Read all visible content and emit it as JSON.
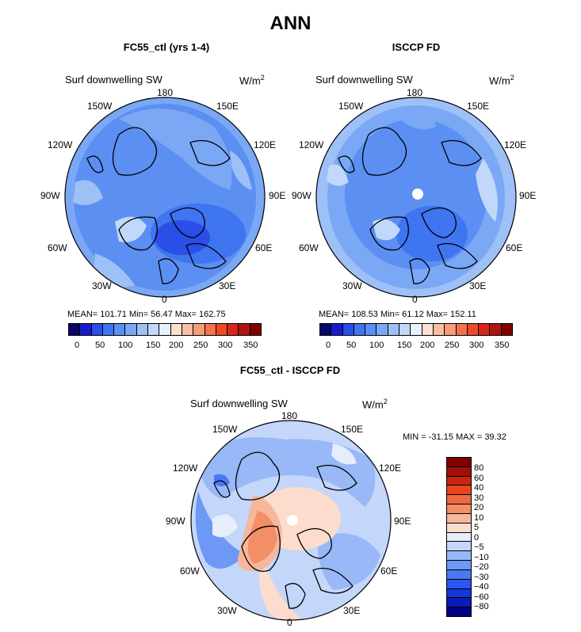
{
  "title": "ANN",
  "colors": {
    "abs_scale": [
      "#08086b",
      "#1a1acb",
      "#2a4fe8",
      "#3f75f0",
      "#5b8ff2",
      "#7aa8f5",
      "#9dc0f7",
      "#c2d8fa",
      "#e8f0fc",
      "#fde0d2",
      "#f9bfa4",
      "#f59c78",
      "#f2744f",
      "#ee4a2a",
      "#d8261a",
      "#b01410",
      "#800000"
    ],
    "diff_scale": [
      "#000080",
      "#0a1bb8",
      "#1538d8",
      "#2a58ee",
      "#4a78f2",
      "#6e98f5",
      "#98b8f7",
      "#c4d6fa",
      "#e6eefb",
      "#fbdccd",
      "#f7b79a",
      "#f28e68",
      "#ee6a42",
      "#e8461f",
      "#c82410",
      "#a01008",
      "#800000"
    ],
    "land": "#000000"
  },
  "panels": [
    {
      "title": "FC55_ctl (yrs 1-4)",
      "variable": "Surf downwelling SW",
      "units": "W/m",
      "units_sup": "2",
      "stats_text": "MEAN= 101.71   Min=   56.47   Max= 162.75",
      "colorbar_labels": [
        "0",
        "50",
        "100",
        "150",
        "200",
        "250",
        "300",
        "350"
      ]
    },
    {
      "title": "ISCCP FD",
      "variable": "Surf downwelling SW",
      "units": "W/m",
      "units_sup": "2",
      "stats_text": "MEAN= 108.53   Min=   61.12   Max= 152.11",
      "colorbar_labels": [
        "0",
        "50",
        "100",
        "150",
        "200",
        "250",
        "300",
        "350"
      ]
    },
    {
      "title": "FC55_ctl - ISCCP FD",
      "variable": "Surf downwelling SW",
      "units": "W/m",
      "units_sup": "2",
      "stats_text": "MIN = -31.15 MAX =   39.32",
      "colorbar_labels": [
        "80",
        "60",
        "40",
        "30",
        "20",
        "10",
        "5",
        "0",
        "−5",
        "−10",
        "−20",
        "−30",
        "−40",
        "−60",
        "−80"
      ]
    }
  ],
  "lon_labels": {
    "top": "180",
    "bottom": "0",
    "left_upper": "150W",
    "left_mid_upper": "120W",
    "left_mid": "90W",
    "left_mid_lower": "60W",
    "left_lower": "30W",
    "right_upper": "150E",
    "right_mid_upper": "120E",
    "right_mid": "90E",
    "right_mid_lower": "60E",
    "right_lower": "30E"
  },
  "chart_data": [
    {
      "type": "heatmap",
      "projection": "north polar stereographic",
      "title": "FC55_ctl (yrs 1-4)",
      "variable": "Surf downwelling SW",
      "units": "W/m2",
      "mean": 101.71,
      "min": 56.47,
      "max": 162.75,
      "contour_levels": [
        0,
        25,
        50,
        75,
        100,
        125,
        150,
        175,
        200,
        225,
        250,
        275,
        300,
        325,
        350
      ],
      "colorbar_ticks": [
        0,
        50,
        100,
        150,
        200,
        250,
        300,
        350
      ]
    },
    {
      "type": "heatmap",
      "projection": "north polar stereographic",
      "title": "ISCCP FD",
      "variable": "Surf downwelling SW",
      "units": "W/m2",
      "mean": 108.53,
      "min": 61.12,
      "max": 152.11,
      "contour_levels": [
        0,
        25,
        50,
        75,
        100,
        125,
        150,
        175,
        200,
        225,
        250,
        275,
        300,
        325,
        350
      ],
      "colorbar_ticks": [
        0,
        50,
        100,
        150,
        200,
        250,
        300,
        350
      ]
    },
    {
      "type": "heatmap",
      "projection": "north polar stereographic",
      "title": "FC55_ctl - ISCCP FD",
      "variable": "Surf downwelling SW",
      "units": "W/m2",
      "min": -31.15,
      "max": 39.32,
      "contour_levels": [
        -80,
        -60,
        -40,
        -30,
        -20,
        -10,
        -5,
        0,
        5,
        10,
        20,
        30,
        40,
        60,
        80
      ]
    }
  ]
}
